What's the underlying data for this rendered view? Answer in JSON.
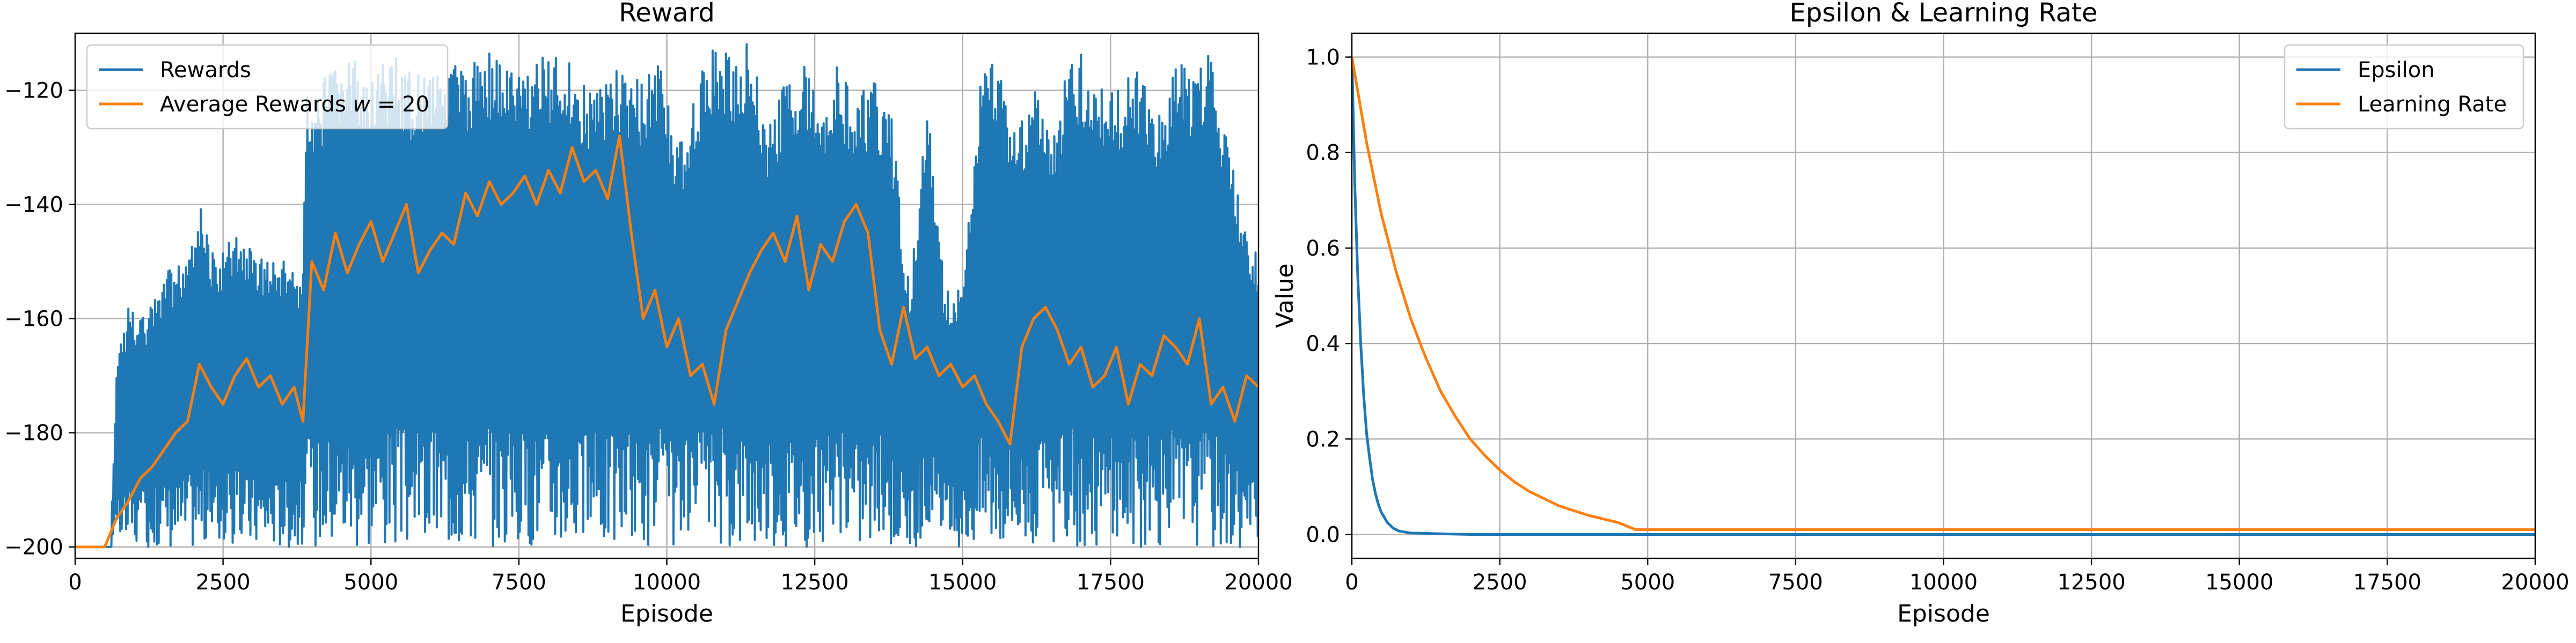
{
  "chart_data": [
    {
      "type": "line",
      "title": "Reward",
      "xlabel": "Episode",
      "ylabel": "",
      "xlim": [
        0,
        20000
      ],
      "ylim": [
        -202,
        -110
      ],
      "xticks": [
        0,
        2500,
        5000,
        7500,
        10000,
        12500,
        15000,
        17500,
        20000
      ],
      "yticks": [
        -200,
        -180,
        -160,
        -140,
        -120
      ],
      "grid": true,
      "legend_position": "top-left",
      "series": [
        {
          "name": "Rewards",
          "color": "#1f77b4",
          "style": "band",
          "x": [
            0,
            600,
            700,
            900,
            1200,
            1500,
            1800,
            2100,
            2400,
            2700,
            3000,
            3300,
            3600,
            3850,
            3900,
            4200,
            4500,
            4800,
            5100,
            5400,
            5700,
            6000,
            6300,
            6600,
            6900,
            7200,
            7500,
            7800,
            8100,
            8400,
            8700,
            9000,
            9300,
            9600,
            9900,
            10200,
            10500,
            10800,
            11100,
            11400,
            11700,
            12000,
            12300,
            12600,
            12900,
            13200,
            13500,
            13800,
            14100,
            14400,
            14700,
            15000,
            15300,
            15600,
            15900,
            16200,
            16500,
            16800,
            17100,
            17400,
            17700,
            18000,
            18300,
            18600,
            18900,
            19200,
            19500,
            19800,
            20000
          ],
          "upper": [
            -200,
            -200,
            -167,
            -158,
            -160,
            -152,
            -150,
            -140,
            -150,
            -145,
            -148,
            -150,
            -150,
            -152,
            -120,
            -118,
            -115,
            -114,
            -116,
            -113,
            -117,
            -115,
            -112,
            -118,
            -112,
            -115,
            -117,
            -114,
            -113,
            -115,
            -120,
            -116,
            -117,
            -118,
            -114,
            -130,
            -118,
            -112,
            -114,
            -110,
            -126,
            -118,
            -115,
            -122,
            -115,
            -122,
            -117,
            -125,
            -155,
            -122,
            -155,
            -155,
            -118,
            -113,
            -128,
            -118,
            -130,
            -113,
            -114,
            -120,
            -118,
            -115,
            -125,
            -113,
            -118,
            -112,
            -130,
            -145,
            -148
          ],
          "lower": [
            -200,
            -200,
            -200,
            -200,
            -200,
            -200,
            -200,
            -200,
            -200,
            -200,
            -200,
            -200,
            -200,
            -200,
            -200,
            -200,
            -200,
            -200,
            -200,
            -200,
            -200,
            -200,
            -200,
            -200,
            -200,
            -200,
            -200,
            -200,
            -200,
            -200,
            -200,
            -200,
            -200,
            -200,
            -200,
            -200,
            -200,
            -200,
            -200,
            -200,
            -200,
            -200,
            -200,
            -200,
            -200,
            -200,
            -200,
            -200,
            -200,
            -200,
            -200,
            -200,
            -200,
            -200,
            -200,
            -200,
            -200,
            -200,
            -200,
            -200,
            -200,
            -200,
            -200,
            -200,
            -200,
            -200,
            -200,
            -200,
            -200
          ]
        },
        {
          "name": "Average Rewards w = 20",
          "color": "#ff7f0e",
          "style": "line",
          "x": [
            0,
            500,
            700,
            900,
            1100,
            1300,
            1500,
            1700,
            1900,
            2100,
            2300,
            2500,
            2700,
            2900,
            3100,
            3300,
            3500,
            3700,
            3850,
            4000,
            4200,
            4400,
            4600,
            4800,
            5000,
            5200,
            5400,
            5600,
            5800,
            6000,
            6200,
            6400,
            6600,
            6800,
            7000,
            7200,
            7400,
            7600,
            7800,
            8000,
            8200,
            8400,
            8600,
            8800,
            9000,
            9200,
            9400,
            9600,
            9800,
            10000,
            10200,
            10400,
            10600,
            10800,
            11000,
            11200,
            11400,
            11600,
            11800,
            12000,
            12200,
            12400,
            12600,
            12800,
            13000,
            13200,
            13400,
            13600,
            13800,
            14000,
            14200,
            14400,
            14600,
            14800,
            15000,
            15200,
            15400,
            15600,
            15800,
            16000,
            16200,
            16400,
            16600,
            16800,
            17000,
            17200,
            17400,
            17600,
            17800,
            18000,
            18200,
            18400,
            18600,
            18800,
            19000,
            19200,
            19400,
            19600,
            19800,
            20000
          ],
          "y": [
            -200,
            -200,
            -195,
            -192,
            -188,
            -186,
            -183,
            -180,
            -178,
            -168,
            -172,
            -175,
            -170,
            -167,
            -172,
            -170,
            -175,
            -172,
            -178,
            -150,
            -155,
            -145,
            -152,
            -147,
            -143,
            -150,
            -145,
            -140,
            -152,
            -148,
            -145,
            -147,
            -138,
            -142,
            -136,
            -140,
            -138,
            -135,
            -140,
            -134,
            -138,
            -130,
            -136,
            -134,
            -139,
            -128,
            -145,
            -160,
            -155,
            -165,
            -160,
            -170,
            -168,
            -175,
            -162,
            -157,
            -152,
            -148,
            -145,
            -150,
            -142,
            -155,
            -147,
            -150,
            -143,
            -140,
            -145,
            -162,
            -168,
            -158,
            -167,
            -165,
            -170,
            -168,
            -172,
            -170,
            -175,
            -178,
            -182,
            -165,
            -160,
            -158,
            -162,
            -168,
            -165,
            -172,
            -170,
            -165,
            -175,
            -168,
            -170,
            -163,
            -165,
            -168,
            -160,
            -175,
            -172,
            -178,
            -170,
            -172
          ]
        }
      ]
    },
    {
      "type": "line",
      "title": "Epsilon & Learning Rate",
      "xlabel": "Episode",
      "ylabel": "Value",
      "xlim": [
        0,
        20000
      ],
      "ylim": [
        -0.05,
        1.05
      ],
      "xticks": [
        0,
        2500,
        5000,
        7500,
        10000,
        12500,
        15000,
        17500,
        20000
      ],
      "yticks": [
        0.0,
        0.2,
        0.4,
        0.6,
        0.8,
        1.0
      ],
      "grid": true,
      "legend_position": "top-right",
      "series": [
        {
          "name": "Epsilon",
          "color": "#1f77b4",
          "x": [
            0,
            50,
            100,
            150,
            200,
            250,
            300,
            350,
            400,
            450,
            500,
            600,
            700,
            800,
            1000,
            2000,
            5000,
            10000,
            15000,
            20000
          ],
          "y": [
            1.0,
            0.73,
            0.54,
            0.4,
            0.29,
            0.21,
            0.16,
            0.115,
            0.085,
            0.062,
            0.046,
            0.025,
            0.013,
            0.007,
            0.003,
            0.0,
            0.0,
            0.0,
            0.0,
            0.0
          ]
        },
        {
          "name": "Learning Rate",
          "color": "#ff7f0e",
          "x": [
            0,
            250,
            500,
            750,
            1000,
            1250,
            1500,
            1750,
            2000,
            2250,
            2500,
            2750,
            3000,
            3500,
            4000,
            4500,
            4800,
            5000,
            10000,
            15000,
            20000
          ],
          "y": [
            1.0,
            0.82,
            0.67,
            0.55,
            0.45,
            0.37,
            0.3,
            0.247,
            0.2,
            0.165,
            0.135,
            0.11,
            0.09,
            0.06,
            0.04,
            0.025,
            0.01,
            0.01,
            0.01,
            0.01,
            0.01
          ]
        }
      ]
    }
  ]
}
